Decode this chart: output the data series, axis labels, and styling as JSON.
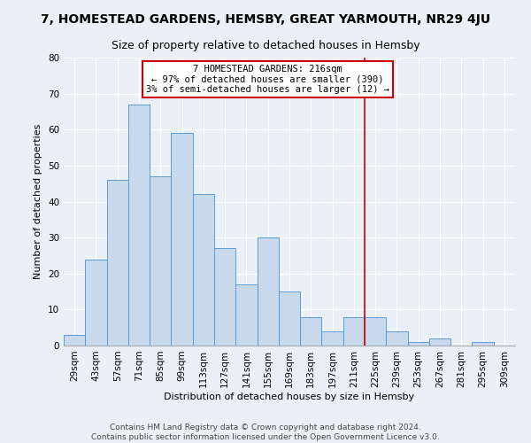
{
  "title": "7, HOMESTEAD GARDENS, HEMSBY, GREAT YARMOUTH, NR29 4JU",
  "subtitle": "Size of property relative to detached houses in Hemsby",
  "xlabel": "Distribution of detached houses by size in Hemsby",
  "ylabel": "Number of detached properties",
  "categories": [
    "29sqm",
    "43sqm",
    "57sqm",
    "71sqm",
    "85sqm",
    "99sqm",
    "113sqm",
    "127sqm",
    "141sqm",
    "155sqm",
    "169sqm",
    "183sqm",
    "197sqm",
    "211sqm",
    "225sqm",
    "239sqm",
    "253sqm",
    "267sqm",
    "281sqm",
    "295sqm",
    "309sqm"
  ],
  "values": [
    3,
    24,
    46,
    67,
    47,
    59,
    42,
    27,
    17,
    30,
    15,
    8,
    4,
    8,
    8,
    4,
    1,
    2,
    0,
    1,
    0
  ],
  "bar_color": "#c8d9ee",
  "bar_edge_color": "#5b9bd5",
  "ylim": [
    0,
    80
  ],
  "yticks": [
    0,
    10,
    20,
    30,
    40,
    50,
    60,
    70,
    80
  ],
  "marker_label": "7 HOMESTEAD GARDENS: 216sqm",
  "annotation_line1": "← 97% of detached houses are smaller (390)",
  "annotation_line2": "3% of semi-detached houses are larger (12) →",
  "annotation_box_color": "#ffffff",
  "annotation_box_edge": "#cc0000",
  "vline_color": "#cc0000",
  "vline_x_index": 13.5,
  "footer_line1": "Contains HM Land Registry data © Crown copyright and database right 2024.",
  "footer_line2": "Contains public sector information licensed under the Open Government Licence v3.0.",
  "background_color": "#eaf0f8",
  "plot_background": "#eaf0f8",
  "title_fontsize": 10,
  "subtitle_fontsize": 9,
  "axis_fontsize": 8,
  "tick_fontsize": 7.5,
  "footer_fontsize": 6.5,
  "annotation_fontsize": 7.5
}
